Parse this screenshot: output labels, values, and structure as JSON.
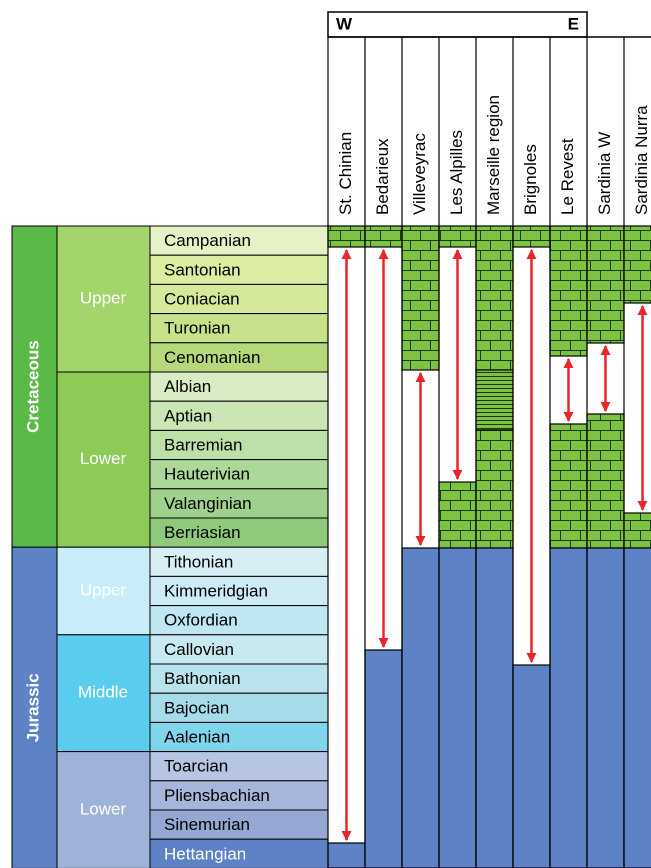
{
  "header": {
    "west": "W",
    "east": "E"
  },
  "localities": [
    "St. Chinian",
    "Bedarieux",
    "Villeveyrac",
    "Les Alpilles",
    "Marseille region",
    "Brignoles",
    "Le Revest",
    "Sardinia W",
    "Sardinia Nurra"
  ],
  "periods": [
    {
      "name": "Cretaceous",
      "epochs": [
        "Upper",
        "Lower"
      ]
    },
    {
      "name": "Jurassic",
      "epochs": [
        "Upper",
        "Middle",
        "Lower"
      ]
    }
  ],
  "stages": [
    "Campanian",
    "Santonian",
    "Coniacian",
    "Turonian",
    "Cenomanian",
    "Albian",
    "Aptian",
    "Barremian",
    "Hauterivian",
    "Valanginian",
    "Berriasian",
    "Tithonian",
    "Kimmeridgian",
    "Oxfordian",
    "Callovian",
    "Bathonian",
    "Bajocian",
    "Aalenian",
    "Toarcian",
    "Pliensbachian",
    "Sinemurian",
    "Hettangian"
  ]
}
